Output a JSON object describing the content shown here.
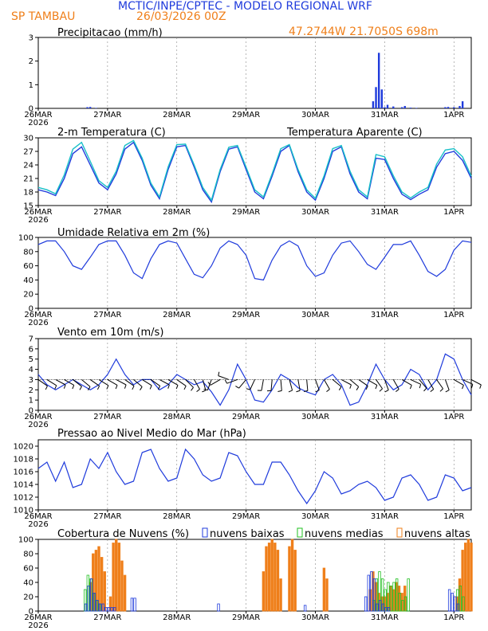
{
  "header": {
    "title": "MCTIC/INPE/CPTEC - MODELO REGIONAL WRF",
    "station": "SP TAMBAU",
    "run": "26/03/2026 00Z",
    "location": "47.2744W 21.7050S 698m"
  },
  "colors": {
    "title": "#1f3bdc",
    "orange": "#ef7f1a",
    "line": "#1f3bdc",
    "cyan": "#18c0c8",
    "low_cloud": "#1f3bdc",
    "mid_cloud": "#22c022",
    "high_cloud": "#ef7f1a",
    "precip": "#1f3bdc",
    "barb": "#000000"
  },
  "x_axis": {
    "labels": [
      "26MAR",
      "27MAR",
      "28MAR",
      "29MAR",
      "30MAR",
      "31MAR",
      "1APR"
    ],
    "year": "2026",
    "range_hours": [
      0,
      150
    ]
  },
  "chart_data": [
    {
      "id": "precip",
      "type": "bar",
      "title": "Precipitacao (mm/h)",
      "ylim": [
        0,
        3
      ],
      "yticks": [
        0,
        1,
        2,
        3
      ],
      "x": [
        17,
        18,
        20,
        116,
        117,
        118,
        119,
        120,
        121,
        123,
        126,
        127,
        129,
        131,
        141,
        142,
        144,
        146,
        147
      ],
      "values": [
        0.05,
        0.06,
        0.02,
        0.3,
        0.9,
        2.35,
        0.8,
        0.05,
        0.15,
        0.08,
        0.05,
        0.1,
        0.03,
        0.02,
        0.05,
        0.06,
        0.05,
        0.1,
        0.3
      ]
    },
    {
      "id": "temperature",
      "type": "line",
      "title": "2-m Temperatura (C)",
      "ylim": [
        15,
        30
      ],
      "yticks": [
        15,
        18,
        21,
        24,
        27,
        30
      ],
      "legend": "Temperatura Aparente (C)",
      "series": [
        {
          "name": "Temperatura",
          "x": [
            0,
            3,
            6,
            9,
            12,
            15,
            18,
            21,
            24,
            27,
            30,
            33,
            36,
            39,
            42,
            45,
            48,
            51,
            54,
            57,
            60,
            63,
            66,
            69,
            72,
            75,
            78,
            81,
            84,
            87,
            90,
            93,
            96,
            99,
            102,
            105,
            108,
            111,
            114,
            117,
            120,
            123,
            126,
            129,
            132,
            135,
            138,
            141,
            144,
            147,
            150
          ],
          "values": [
            18.5,
            18.0,
            17.2,
            21.0,
            26.5,
            28.0,
            24.0,
            20.0,
            18.5,
            22.0,
            27.5,
            29.0,
            25.0,
            19.5,
            16.5,
            23.0,
            28.0,
            28.3,
            23.5,
            18.5,
            15.8,
            22.5,
            27.5,
            28.0,
            23.0,
            18.0,
            16.5,
            21.5,
            27.0,
            28.3,
            22.5,
            18.0,
            16.2,
            21.0,
            27.0,
            28.0,
            22.0,
            18.0,
            16.5,
            25.5,
            25.2,
            21.0,
            17.5,
            16.3,
            17.5,
            18.5,
            23.5,
            26.5,
            27.0,
            25.0,
            21.0
          ]
        },
        {
          "name": "Temperatura Aparente",
          "x": [
            0,
            3,
            6,
            9,
            12,
            15,
            18,
            21,
            24,
            27,
            30,
            33,
            36,
            39,
            42,
            45,
            48,
            51,
            54,
            57,
            60,
            63,
            66,
            69,
            72,
            75,
            78,
            81,
            84,
            87,
            90,
            93,
            96,
            99,
            102,
            105,
            108,
            111,
            114,
            117,
            120,
            123,
            126,
            129,
            132,
            135,
            138,
            141,
            144,
            147,
            150
          ],
          "values": [
            19.0,
            18.5,
            17.6,
            21.8,
            27.5,
            29.0,
            24.8,
            20.5,
            19.0,
            22.6,
            28.3,
            29.4,
            25.5,
            20.0,
            16.9,
            23.6,
            28.5,
            28.6,
            24.0,
            19.0,
            16.2,
            23.0,
            27.9,
            28.3,
            23.5,
            18.5,
            16.9,
            22.0,
            27.6,
            28.5,
            23.0,
            18.5,
            16.6,
            21.6,
            27.6,
            28.3,
            22.6,
            18.5,
            16.9,
            26.3,
            25.8,
            21.6,
            18.0,
            16.7,
            18.0,
            19.0,
            24.2,
            27.3,
            27.6,
            25.8,
            21.5
          ]
        }
      ]
    },
    {
      "id": "humidity",
      "type": "line",
      "title": "Umidade Relativa em 2m (%)",
      "ylim": [
        0,
        100
      ],
      "yticks": [
        0,
        20,
        40,
        60,
        80,
        100
      ],
      "x": [
        0,
        3,
        6,
        9,
        12,
        15,
        18,
        21,
        24,
        27,
        30,
        33,
        36,
        39,
        42,
        45,
        48,
        51,
        54,
        57,
        60,
        63,
        66,
        69,
        72,
        75,
        78,
        81,
        84,
        87,
        90,
        93,
        96,
        99,
        102,
        105,
        108,
        111,
        114,
        117,
        120,
        123,
        126,
        129,
        132,
        135,
        138,
        141,
        144,
        147,
        150
      ],
      "values": [
        90,
        95,
        95,
        80,
        60,
        55,
        72,
        90,
        95,
        95,
        75,
        50,
        42,
        70,
        90,
        95,
        92,
        70,
        48,
        43,
        60,
        85,
        95,
        90,
        75,
        42,
        40,
        68,
        88,
        95,
        88,
        60,
        45,
        50,
        75,
        92,
        95,
        80,
        62,
        55,
        72,
        90,
        90,
        95,
        75,
        52,
        45,
        55,
        82,
        95,
        93
      ]
    },
    {
      "id": "wind",
      "type": "line",
      "title": "Vento em 10m (m/s)",
      "ylim": [
        0,
        7
      ],
      "yticks": [
        0,
        1,
        2,
        3,
        4,
        5,
        6,
        7
      ],
      "x": [
        0,
        3,
        6,
        9,
        12,
        15,
        18,
        21,
        24,
        27,
        30,
        33,
        36,
        39,
        42,
        45,
        48,
        51,
        54,
        57,
        60,
        63,
        66,
        69,
        72,
        75,
        78,
        81,
        84,
        87,
        90,
        93,
        96,
        99,
        102,
        105,
        108,
        111,
        114,
        117,
        120,
        123,
        126,
        129,
        132,
        135,
        138,
        141,
        144,
        147,
        150
      ],
      "values": [
        3.5,
        2.5,
        2.0,
        2.5,
        3.0,
        2.5,
        2.0,
        2.5,
        3.5,
        5.0,
        3.5,
        2.5,
        3.0,
        3.0,
        2.0,
        2.5,
        3.5,
        3.0,
        2.5,
        2.8,
        1.8,
        0.5,
        2.0,
        4.5,
        3.0,
        1.0,
        0.8,
        2.0,
        3.5,
        3.0,
        2.2,
        1.8,
        1.5,
        3.0,
        3.5,
        2.5,
        0.5,
        0.8,
        2.5,
        4.5,
        3.0,
        2.0,
        2.5,
        4.0,
        3.5,
        2.0,
        3.0,
        5.5,
        5.0,
        3.0,
        1.5
      ],
      "barbs_deg": [
        125,
        122,
        118,
        120,
        128,
        130,
        125,
        122,
        120,
        118,
        125,
        130,
        122,
        125,
        118,
        120,
        125,
        135,
        150,
        165,
        200,
        240,
        290,
        250,
        220,
        205,
        190,
        185,
        175,
        165,
        170,
        175,
        160,
        150,
        130,
        118,
        130,
        125,
        120,
        145,
        160,
        150,
        120,
        115,
        140,
        150,
        145,
        160,
        120,
        115,
        118
      ]
    },
    {
      "id": "pressure",
      "type": "line",
      "title": "Pressao ao Nivel Medio do Mar (hPa)",
      "ylim": [
        1010,
        1021
      ],
      "yticks": [
        1010,
        1012,
        1014,
        1016,
        1018,
        1020
      ],
      "x": [
        0,
        3,
        6,
        9,
        12,
        15,
        18,
        21,
        24,
        27,
        30,
        33,
        36,
        39,
        42,
        45,
        48,
        51,
        54,
        57,
        60,
        63,
        66,
        69,
        72,
        75,
        78,
        81,
        84,
        87,
        90,
        93,
        96,
        99,
        102,
        105,
        108,
        111,
        114,
        117,
        120,
        123,
        126,
        129,
        132,
        135,
        138,
        141,
        144,
        147,
        150
      ],
      "values": [
        1016.5,
        1017.5,
        1014.5,
        1017.5,
        1013.5,
        1014.0,
        1018.0,
        1016.5,
        1019.0,
        1016.0,
        1014.0,
        1014.5,
        1019.0,
        1019.5,
        1016.5,
        1014.5,
        1015.0,
        1019.5,
        1018.0,
        1015.5,
        1014.5,
        1015.0,
        1019.0,
        1018.5,
        1016.0,
        1014.0,
        1014.0,
        1017.5,
        1017.5,
        1015.5,
        1013.0,
        1011.0,
        1013.0,
        1016.0,
        1015.0,
        1012.5,
        1013.0,
        1014.0,
        1014.5,
        1013.5,
        1011.5,
        1012.0,
        1015.0,
        1015.5,
        1014.0,
        1011.5,
        1012.0,
        1015.5,
        1015.0,
        1013.0,
        1013.5
      ]
    },
    {
      "id": "clouds",
      "type": "bar",
      "title": "Cobertura de Nuvens (%)",
      "ylim": [
        0,
        100
      ],
      "yticks": [
        0,
        20,
        40,
        60,
        80,
        100
      ],
      "legend": [
        "nuvens baixas",
        "nuvens medias",
        "nuvens altas"
      ],
      "low": {
        "x": [
          16,
          17,
          18,
          19,
          20,
          21,
          22,
          23,
          24,
          25,
          26,
          32,
          33,
          62,
          92,
          113,
          114,
          115,
          116,
          117,
          118,
          119,
          120,
          121,
          142,
          143,
          144,
          145
        ],
        "values": [
          10,
          35,
          45,
          25,
          15,
          10,
          10,
          5,
          5,
          5,
          5,
          18,
          18,
          10,
          8,
          20,
          50,
          55,
          45,
          10,
          15,
          10,
          5,
          5,
          30,
          25,
          20,
          10
        ]
      },
      "mid": {
        "x": [
          16,
          17,
          18,
          19,
          20,
          21,
          116,
          117,
          118,
          119,
          120,
          121,
          122,
          123,
          124,
          125,
          126,
          127,
          128,
          145,
          146,
          147
        ],
        "values": [
          30,
          50,
          45,
          25,
          15,
          10,
          15,
          45,
          55,
          45,
          30,
          40,
          35,
          40,
          45,
          25,
          15,
          20,
          45,
          30,
          35,
          20
        ]
      },
      "high": {
        "x": [
          18,
          19,
          20,
          21,
          22,
          23,
          25,
          26,
          27,
          28,
          29,
          30,
          78,
          79,
          80,
          81,
          82,
          83,
          84,
          87,
          88,
          89,
          99,
          100,
          115,
          116,
          117,
          118,
          119,
          120,
          121,
          122,
          123,
          124,
          125,
          126,
          127,
          145,
          146,
          147,
          148,
          149,
          150
        ],
        "values": [
          40,
          80,
          85,
          90,
          75,
          55,
          20,
          95,
          100,
          95,
          70,
          50,
          55,
          90,
          95,
          100,
          95,
          85,
          45,
          90,
          100,
          85,
          60,
          45,
          30,
          55,
          40,
          25,
          20,
          20,
          25,
          35,
          30,
          40,
          35,
          25,
          35,
          20,
          45,
          85,
          95,
          100,
          95
        ]
      }
    }
  ]
}
